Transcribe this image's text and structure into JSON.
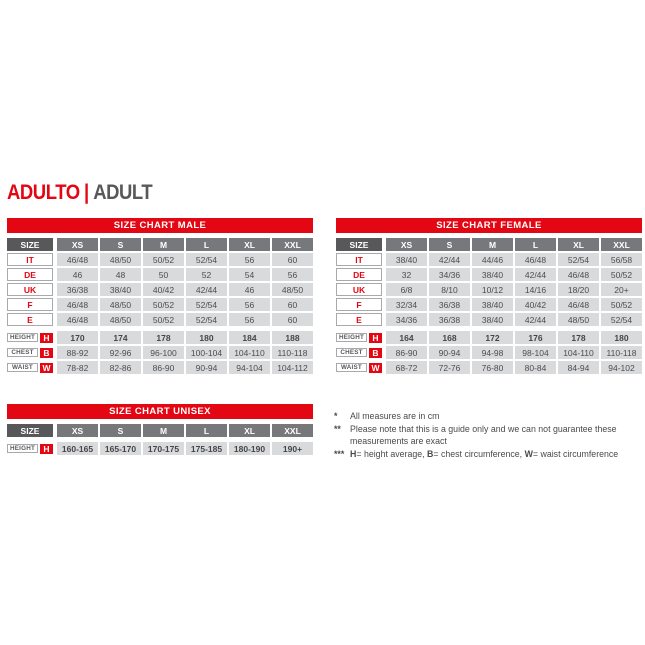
{
  "page": {
    "title_primary": "ADULTO",
    "title_separator": "|",
    "title_secondary": "ADULT"
  },
  "colors": {
    "accent_red": "#E30613",
    "header_dark_gray": "#58585B",
    "header_mid_gray": "#77787B",
    "cell_light_gray": "#D9DADB",
    "border_gray": "#A7A9AC",
    "text_gray": "#4D4D4F"
  },
  "size_label": "SIZE",
  "size_columns": [
    "XS",
    "S",
    "M",
    "L",
    "XL",
    "XXL"
  ],
  "tables": {
    "male": {
      "title": "SIZE CHART MALE",
      "size_rows": [
        {
          "label": "IT",
          "values": [
            "46/48",
            "48/50",
            "50/52",
            "52/54",
            "56",
            "60"
          ]
        },
        {
          "label": "DE",
          "values": [
            "46",
            "48",
            "50",
            "52",
            "54",
            "56"
          ]
        },
        {
          "label": "UK",
          "values": [
            "36/38",
            "38/40",
            "40/42",
            "42/44",
            "46",
            "48/50"
          ]
        },
        {
          "label": "F",
          "values": [
            "46/48",
            "48/50",
            "50/52",
            "52/54",
            "56",
            "60"
          ]
        },
        {
          "label": "E",
          "values": [
            "46/48",
            "48/50",
            "50/52",
            "52/54",
            "56",
            "60"
          ]
        }
      ],
      "measure_rows": [
        {
          "label": "HEIGHT",
          "badge": "H",
          "bold": true,
          "values": [
            "170",
            "174",
            "178",
            "180",
            "184",
            "188"
          ]
        },
        {
          "label": "CHEST",
          "badge": "B",
          "bold": false,
          "values": [
            "88-92",
            "92-96",
            "96-100",
            "100-104",
            "104-110",
            "110-118"
          ]
        },
        {
          "label": "WAIST",
          "badge": "W",
          "bold": false,
          "values": [
            "78-82",
            "82-86",
            "86-90",
            "90-94",
            "94-104",
            "104-112"
          ]
        }
      ]
    },
    "female": {
      "title": "SIZE CHART FEMALE",
      "size_rows": [
        {
          "label": "IT",
          "values": [
            "38/40",
            "42/44",
            "44/46",
            "46/48",
            "52/54",
            "56/58"
          ]
        },
        {
          "label": "DE",
          "values": [
            "32",
            "34/36",
            "38/40",
            "42/44",
            "46/48",
            "50/52"
          ]
        },
        {
          "label": "UK",
          "values": [
            "6/8",
            "8/10",
            "10/12",
            "14/16",
            "18/20",
            "20+"
          ]
        },
        {
          "label": "F",
          "values": [
            "32/34",
            "36/38",
            "38/40",
            "40/42",
            "46/48",
            "50/52"
          ]
        },
        {
          "label": "E",
          "values": [
            "34/36",
            "36/38",
            "38/40",
            "42/44",
            "48/50",
            "52/54"
          ]
        }
      ],
      "measure_rows": [
        {
          "label": "HEIGHT",
          "badge": "H",
          "bold": true,
          "values": [
            "164",
            "168",
            "172",
            "176",
            "178",
            "180"
          ]
        },
        {
          "label": "CHEST",
          "badge": "B",
          "bold": false,
          "values": [
            "86-90",
            "90-94",
            "94-98",
            "98-104",
            "104-110",
            "110-118"
          ]
        },
        {
          "label": "WAIST",
          "badge": "W",
          "bold": false,
          "values": [
            "68-72",
            "72-76",
            "76-80",
            "80-84",
            "84-94",
            "94-102"
          ]
        }
      ]
    },
    "unisex": {
      "title": "SIZE CHART UNISEX",
      "size_rows": [],
      "measure_rows": [
        {
          "label": "HEIGHT",
          "badge": "H",
          "bold": true,
          "values": [
            "160-165",
            "165-170",
            "170-175",
            "175-185",
            "180-190",
            "190+"
          ]
        }
      ]
    }
  },
  "footnotes": [
    {
      "marker": "*",
      "segments": [
        {
          "text": "All measures are in cm",
          "bold": false
        }
      ]
    },
    {
      "marker": "**",
      "segments": [
        {
          "text": "Please note that this is a guide only and we can not guarantee these measurements are exact",
          "bold": false
        }
      ]
    },
    {
      "marker": "***",
      "segments": [
        {
          "text": "H",
          "bold": true
        },
        {
          "text": "= height average, ",
          "bold": false
        },
        {
          "text": "B",
          "bold": true
        },
        {
          "text": "= chest circumference, ",
          "bold": false
        },
        {
          "text": "W",
          "bold": true
        },
        {
          "text": "= waist circumference",
          "bold": false
        }
      ]
    }
  ]
}
